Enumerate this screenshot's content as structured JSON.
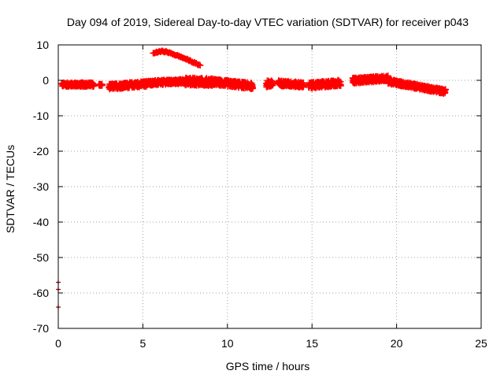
{
  "chart_data": {
    "type": "scatter",
    "title": "Day 094 of 2019, Sidereal Day-to-day VTEC variation (SDTVAR) for receiver p043",
    "xlabel": "GPS time / hours",
    "ylabel": "SDTVAR / TECUs",
    "xlim": [
      0,
      25
    ],
    "ylim": [
      -70,
      10
    ],
    "xticks": [
      0,
      5,
      10,
      15,
      20,
      25
    ],
    "yticks": [
      -70,
      -60,
      -50,
      -40,
      -30,
      -20,
      -10,
      0,
      10
    ],
    "grid": true,
    "marker": "plus",
    "color": "#ff0000",
    "outlier_color": "#aa0000",
    "series": [
      {
        "name": "main-band",
        "segments": [
          {
            "x_start": 0.2,
            "x_end": 2.1,
            "y_start": -1.2,
            "y_end": -1.2,
            "jitter": 0.6
          },
          {
            "x_start": 2.4,
            "x_end": 2.6,
            "y_start": -1.3,
            "y_end": -1.3,
            "jitter": 0.3
          },
          {
            "x_start": 3.0,
            "x_end": 5.2,
            "y_start": -1.8,
            "y_end": -1.0,
            "jitter": 0.8
          },
          {
            "x_start": 5.2,
            "x_end": 7.5,
            "y_start": -0.8,
            "y_end": -0.3,
            "jitter": 0.7
          },
          {
            "x_start": 7.5,
            "x_end": 9.2,
            "y_start": -0.3,
            "y_end": -0.5,
            "jitter": 1.1
          },
          {
            "x_start": 9.2,
            "x_end": 11.5,
            "y_start": -0.5,
            "y_end": -1.6,
            "jitter": 0.9
          },
          {
            "x_start": 12.3,
            "x_end": 12.7,
            "y_start": -1.0,
            "y_end": -1.0,
            "jitter": 1.0
          },
          {
            "x_start": 13.0,
            "x_end": 14.5,
            "y_start": -0.8,
            "y_end": -1.3,
            "jitter": 0.8
          },
          {
            "x_start": 14.8,
            "x_end": 16.7,
            "y_start": -1.5,
            "y_end": -0.7,
            "jitter": 0.9
          },
          {
            "x_start": 17.4,
            "x_end": 19.5,
            "y_start": -0.1,
            "y_end": 0.6,
            "jitter": 0.8
          },
          {
            "x_start": 19.5,
            "x_end": 22.9,
            "y_start": -0.3,
            "y_end": -3.2,
            "jitter": 0.7
          }
        ]
      },
      {
        "name": "upper-arc",
        "points": [
          [
            5.6,
            7.6
          ],
          [
            5.8,
            7.9
          ],
          [
            6.0,
            8.1
          ],
          [
            6.2,
            8.2
          ],
          [
            6.4,
            8.0
          ],
          [
            6.6,
            7.7
          ],
          [
            6.8,
            7.4
          ],
          [
            7.0,
            7.0
          ],
          [
            7.2,
            6.7
          ],
          [
            7.4,
            6.3
          ],
          [
            7.6,
            5.9
          ],
          [
            7.8,
            5.5
          ],
          [
            8.0,
            5.0
          ],
          [
            8.2,
            4.6
          ],
          [
            8.4,
            4.2
          ]
        ]
      },
      {
        "name": "outliers",
        "points": [
          [
            0.0,
            -57
          ],
          [
            0.0,
            -59
          ],
          [
            0.0,
            -64
          ]
        ]
      }
    ]
  }
}
